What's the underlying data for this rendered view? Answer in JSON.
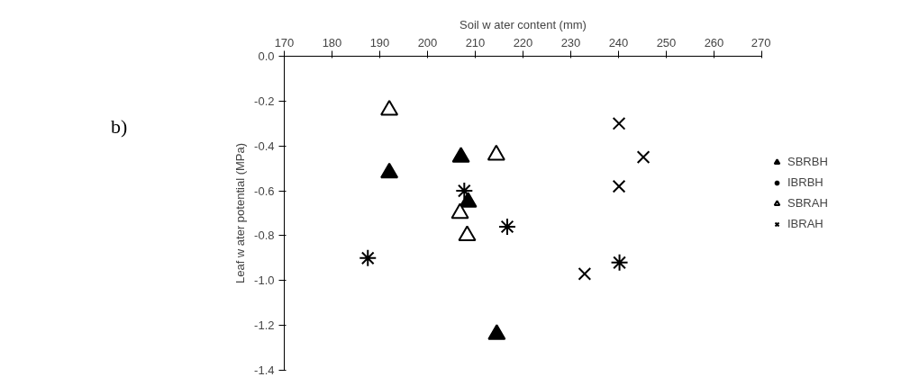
{
  "chart_data": {
    "type": "scatter",
    "xlabel": "Soil w ater content (mm)",
    "ylabel": "Leaf w ater potential (MPa)",
    "annotations": [
      "b)"
    ],
    "xlim": [
      170,
      270
    ],
    "ylim": [
      -1.4,
      0.0
    ],
    "xticks": [
      170,
      180,
      190,
      200,
      210,
      220,
      230,
      240,
      250,
      260,
      270
    ],
    "yticks": [
      {
        "value": 0.0,
        "label": "0.0"
      },
      {
        "value": -0.2,
        "label": "-0.2"
      },
      {
        "value": -0.4,
        "label": "-0.4"
      },
      {
        "value": -0.6,
        "label": "-0.6"
      },
      {
        "value": -0.8,
        "label": "-0.8"
      },
      {
        "value": -1.0,
        "label": "-1.0"
      },
      {
        "value": -1.2,
        "label": "-1.2"
      },
      {
        "value": -1.4,
        "label": "-1.4"
      }
    ],
    "grid": false,
    "legend": "right",
    "series": [
      {
        "name": "SBRBH",
        "color": "#000000",
        "x": [
          192,
          207,
          208.5,
          214.5
        ],
        "values": [
          -0.52,
          -0.45,
          -0.65,
          -1.24
        ]
      },
      {
        "name": "IBRBH",
        "color": "#000000",
        "x": [
          187.5,
          207.7,
          216.7,
          240.2
        ],
        "values": [
          -0.9,
          -0.6,
          -0.76,
          -0.92
        ]
      },
      {
        "name": "SBRAH",
        "color": "#000000",
        "x": [
          192,
          214.4,
          206.8,
          208.3
        ],
        "values": [
          -0.24,
          -0.44,
          -0.7,
          -0.8
        ]
      },
      {
        "name": "IBRAH",
        "color": "#000000",
        "x": [
          232.9,
          240.1,
          240.1,
          245.2
        ],
        "values": [
          -0.97,
          -0.3,
          -0.58,
          -0.45
        ]
      }
    ]
  }
}
